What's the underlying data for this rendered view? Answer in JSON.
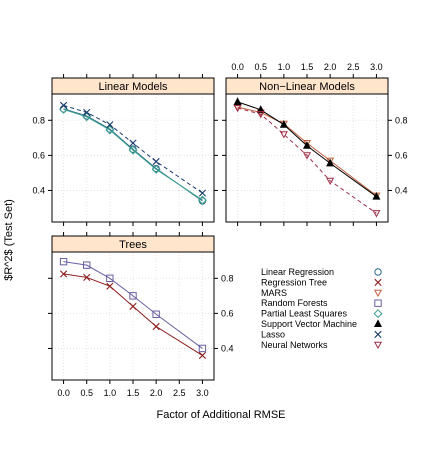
{
  "chart_data": {
    "type": "line",
    "ylabel": "$R^2$ (Test Set)",
    "xlabel": "Factor of Additional RMSE",
    "x": [
      0.0,
      0.5,
      1.0,
      1.5,
      2.0,
      3.0
    ],
    "x_ticks": [
      "0.0",
      "0.5",
      "1.0",
      "1.5",
      "2.0",
      "2.5",
      "3.0"
    ],
    "y_ticks": [
      "0.4",
      "0.6",
      "0.8"
    ],
    "ylim": [
      0.22,
      0.95
    ],
    "xlim": [
      -0.25,
      3.25
    ],
    "grid": true,
    "legend_position": "bottom-right",
    "legend": [
      {
        "label": "Linear Regression",
        "symbol": "circle",
        "color": "#2e6b8a"
      },
      {
        "label": "Regression Tree",
        "symbol": "x",
        "color": "#8b1a1a"
      },
      {
        "label": "MARS",
        "symbol": "triangle-down",
        "color": "#c06040"
      },
      {
        "label": "Random Forests",
        "symbol": "square",
        "color": "#6a5fa0"
      },
      {
        "label": "Partial Least Squares",
        "symbol": "diamond",
        "color": "#3aa090"
      },
      {
        "label": "Support Vector Machine",
        "symbol": "triangle-up-filled",
        "color": "#000000"
      },
      {
        "label": "Lasso",
        "symbol": "x",
        "color": "#1a3a6a"
      },
      {
        "label": "Neural Networks",
        "symbol": "triangle-down",
        "color": "#a0304a"
      }
    ],
    "panels": [
      {
        "title": "Linear Models",
        "series": [
          {
            "name": "Linear Regression",
            "values": [
              0.865,
              0.825,
              0.75,
              0.635,
              0.525,
              0.34
            ]
          },
          {
            "name": "Partial Least Squares",
            "values": [
              0.862,
              0.82,
              0.745,
              0.63,
              0.52,
              0.345
            ]
          },
          {
            "name": "Lasso",
            "values": [
              0.885,
              0.845,
              0.775,
              0.67,
              0.565,
              0.385
            ]
          }
        ]
      },
      {
        "title": "Non−Linear Models",
        "series": [
          {
            "name": "MARS",
            "values": [
              0.875,
              0.845,
              0.78,
              0.67,
              0.57,
              0.37
            ]
          },
          {
            "name": "Support Vector Machine",
            "values": [
              0.905,
              0.86,
              0.775,
              0.655,
              0.555,
              0.365
            ]
          },
          {
            "name": "Neural Networks",
            "values": [
              0.87,
              0.835,
              0.72,
              0.6,
              0.455,
              0.27
            ]
          }
        ]
      },
      {
        "title": "Trees",
        "series": [
          {
            "name": "Regression Tree",
            "values": [
              0.825,
              0.805,
              0.755,
              0.64,
              0.525,
              0.36
            ]
          },
          {
            "name": "Random Forests",
            "values": [
              0.895,
              0.875,
              0.8,
              0.7,
              0.595,
              0.4
            ]
          }
        ]
      }
    ]
  }
}
